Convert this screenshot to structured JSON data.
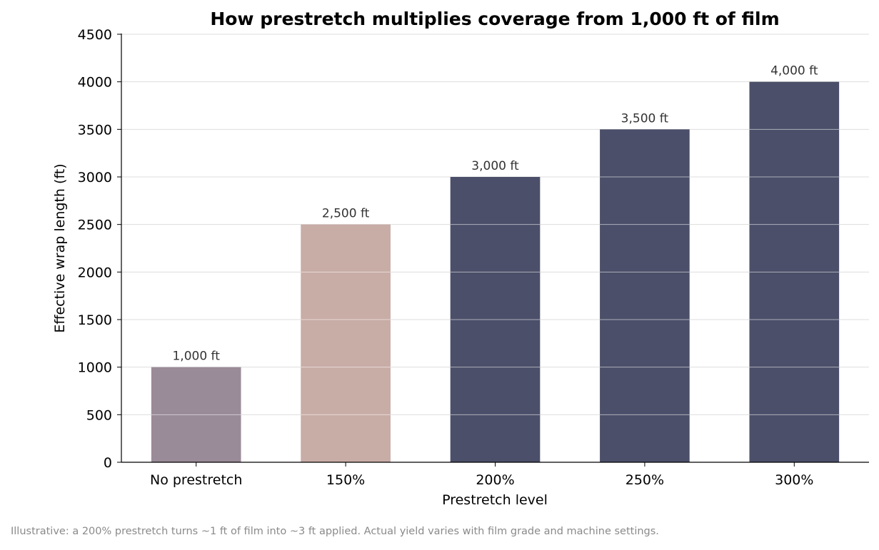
{
  "chart_data": {
    "type": "bar",
    "title": "How prestretch multiplies coverage from 1,000 ft of film",
    "xlabel": "Prestretch level",
    "ylabel": "Effective wrap length (ft)",
    "categories": [
      "No prestretch",
      "150%",
      "200%",
      "250%",
      "300%"
    ],
    "values": [
      1000,
      2500,
      3000,
      3500,
      4000
    ],
    "data_labels": [
      "1,000 ft",
      "2,500 ft",
      "3,000 ft",
      "3,500 ft",
      "4,000 ft"
    ],
    "bar_colors": [
      "#9a8b98",
      "#c8aca6",
      "#4b4f69",
      "#4b4f69",
      "#4b4f69"
    ],
    "ylim": [
      0,
      4500
    ],
    "yticks": [
      0,
      500,
      1000,
      1500,
      2000,
      2500,
      3000,
      3500,
      4000,
      4500
    ],
    "grid": true,
    "legend": "none"
  },
  "footnote": "Illustrative: a 200% prestretch turns ~1 ft of film into ~3 ft applied. Actual yield varies with film grade and machine settings.",
  "colors": {
    "grid": "#dddddd",
    "axis": "#000000",
    "footnote": "#8a8a8a"
  }
}
